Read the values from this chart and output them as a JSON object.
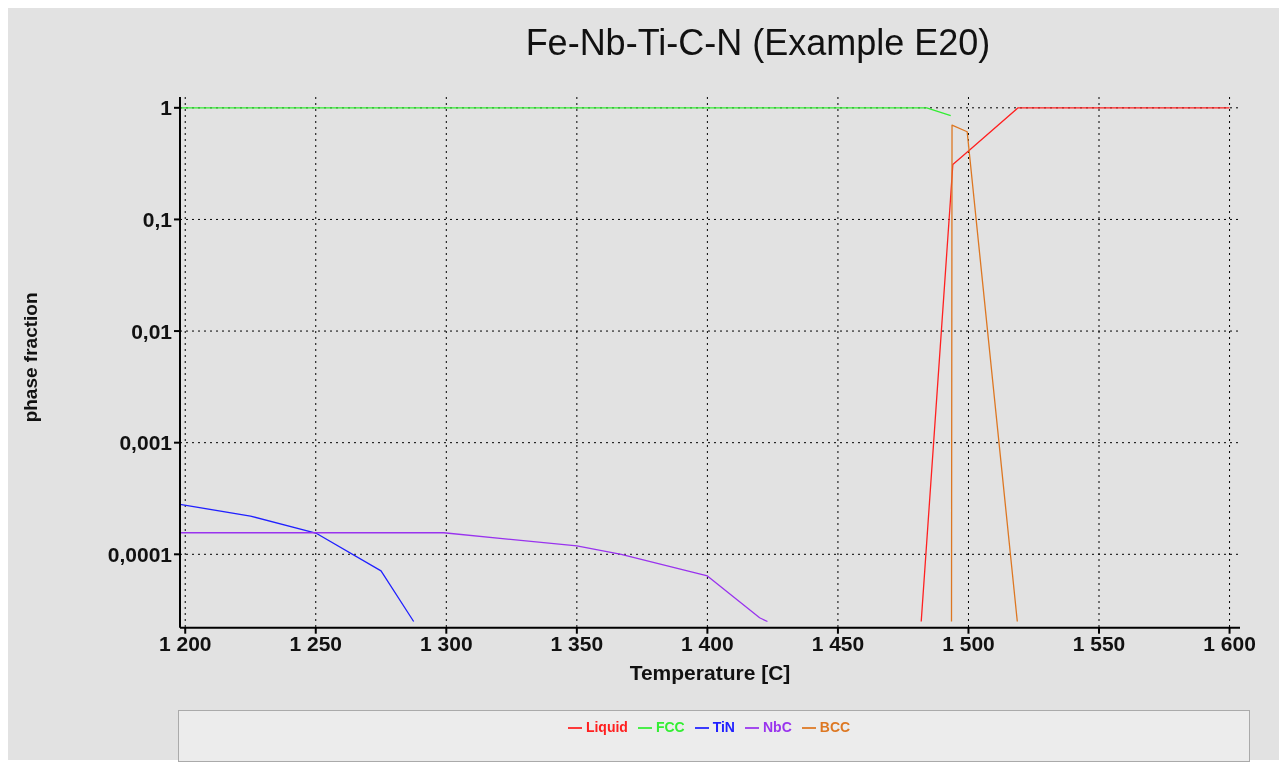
{
  "chart_data": {
    "type": "line",
    "title": "Fe-Nb-Ti-C-N (Example E20)",
    "xlabel": "Temperature [C]",
    "ylabel": "phase fraction",
    "log": "y",
    "grid": true,
    "legend": "bottom",
    "marker": "none",
    "line_style": "solid",
    "xlim": [
      1198,
      1604
    ],
    "ylim": [
      2.2e-05,
      1.25
    ],
    "xticks": [
      {
        "value": 1200,
        "label": "1 200"
      },
      {
        "value": 1250,
        "label": "1 250"
      },
      {
        "value": 1300,
        "label": "1 300"
      },
      {
        "value": 1350,
        "label": "1 350"
      },
      {
        "value": 1400,
        "label": "1 400"
      },
      {
        "value": 1450,
        "label": "1 450"
      },
      {
        "value": 1500,
        "label": "1 500"
      },
      {
        "value": 1550,
        "label": "1 550"
      },
      {
        "value": 1600,
        "label": "1 600"
      }
    ],
    "yticks": [
      {
        "value": 0.0001,
        "label": "0,0001"
      },
      {
        "value": 0.001,
        "label": "0,001"
      },
      {
        "value": 0.01,
        "label": "0,01"
      },
      {
        "value": 0.1,
        "label": "0,1"
      },
      1
    ],
    "series": [
      {
        "name": "Liquid",
        "color": "#ff2020",
        "x": [
          1481.9,
          1493.1,
          1494,
          1500,
          1519,
          1600
        ],
        "values": [
          2.5e-05,
          0.15,
          0.31,
          0.41,
          1,
          1
        ]
      },
      {
        "name": "FCC",
        "color": "#33ee33",
        "x": [
          1198,
          1484,
          1493.2
        ],
        "values": [
          1,
          1,
          0.85
        ]
      },
      {
        "name": "TiN",
        "color": "#2020ff",
        "x": [
          1198,
          1225,
          1250,
          1275,
          1287.5
        ],
        "values": [
          0.00028,
          0.00022,
          0.000155,
          7.1e-05,
          2.5e-05
        ]
      },
      {
        "name": "NbC",
        "color": "#9933ee",
        "x": [
          1198,
          1299,
          1350,
          1367,
          1400,
          1420,
          1423
        ],
        "values": [
          0.000156,
          0.000156,
          0.000119,
          0.0001,
          6.4e-05,
          2.7e-05,
          2.5e-05
        ]
      },
      {
        "name": "BCC",
        "color": "#dd7722",
        "x": [
          1493.5,
          1493.7,
          1499.5,
          1518.7
        ],
        "values": [
          2.5e-05,
          0.7,
          0.61,
          2.5e-05
        ]
      }
    ]
  }
}
